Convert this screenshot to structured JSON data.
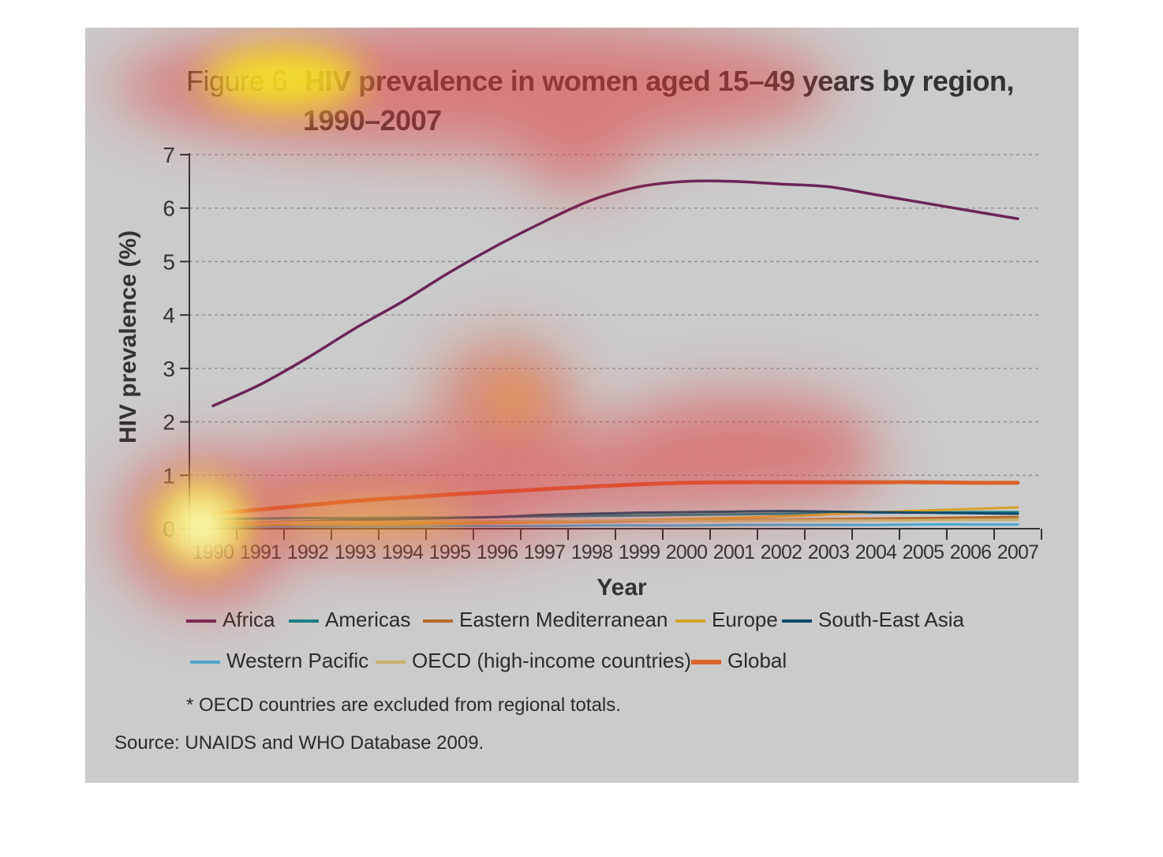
{
  "chart_data": {
    "type": "line",
    "title_prefix": "Figure 6",
    "title_line1": "HIV prevalence in women aged 15–49 years by region,",
    "title_line2": "1990–2007",
    "xlabel": "Year",
    "ylabel": "HIV prevalence (%)",
    "ylim": [
      0,
      7
    ],
    "yticks": [
      "0",
      "1",
      "2",
      "3",
      "4",
      "5",
      "6",
      "7"
    ],
    "x": [
      "1990",
      "1991",
      "1992",
      "1993",
      "1994",
      "1995",
      "1996",
      "1997",
      "1998",
      "1999",
      "2000",
      "2001",
      "2002",
      "2003",
      "2004",
      "2005",
      "2006",
      "2007"
    ],
    "grid": "horizontal dashed",
    "legend_position": "bottom",
    "series": [
      {
        "name": "Africa",
        "color": "#6b2557",
        "width": 3.5,
        "values": [
          2.3,
          2.7,
          3.2,
          3.75,
          4.25,
          4.8,
          5.3,
          5.75,
          6.15,
          6.4,
          6.5,
          6.5,
          6.45,
          6.4,
          6.25,
          6.1,
          5.95,
          5.8
        ]
      },
      {
        "name": "Americas",
        "color": "#1a7f86",
        "width": 3,
        "values": [
          0.18,
          0.19,
          0.2,
          0.2,
          0.21,
          0.21,
          0.22,
          0.23,
          0.24,
          0.25,
          0.26,
          0.27,
          0.28,
          0.29,
          0.3,
          0.3,
          0.31,
          0.31
        ]
      },
      {
        "name": "Eastern Mediterranean",
        "color": "#b86a2c",
        "width": 3,
        "values": [
          0.05,
          0.06,
          0.07,
          0.08,
          0.09,
          0.1,
          0.11,
          0.12,
          0.13,
          0.14,
          0.15,
          0.16,
          0.17,
          0.18,
          0.19,
          0.2,
          0.21,
          0.22
        ]
      },
      {
        "name": "Europe",
        "color": "#d4a22a",
        "width": 3,
        "values": [
          0.05,
          0.06,
          0.07,
          0.08,
          0.09,
          0.1,
          0.11,
          0.12,
          0.14,
          0.16,
          0.18,
          0.2,
          0.23,
          0.27,
          0.31,
          0.34,
          0.37,
          0.4
        ]
      },
      {
        "name": "South-East Asia",
        "color": "#0d4a6b",
        "width": 3,
        "values": [
          0.1,
          0.12,
          0.14,
          0.16,
          0.18,
          0.2,
          0.22,
          0.26,
          0.28,
          0.3,
          0.31,
          0.32,
          0.33,
          0.32,
          0.31,
          0.3,
          0.29,
          0.28
        ]
      },
      {
        "name": "Western Pacific",
        "color": "#4aa8cf",
        "width": 3,
        "values": [
          0.03,
          0.03,
          0.04,
          0.04,
          0.04,
          0.05,
          0.05,
          0.05,
          0.06,
          0.06,
          0.06,
          0.07,
          0.07,
          0.07,
          0.07,
          0.08,
          0.08,
          0.08
        ]
      },
      {
        "name": "OECD (high-income countries)",
        "color": "#c8b06a",
        "width": 3,
        "values": [
          0.12,
          0.12,
          0.13,
          0.13,
          0.13,
          0.14,
          0.14,
          0.14,
          0.15,
          0.15,
          0.15,
          0.15,
          0.16,
          0.16,
          0.16,
          0.16,
          0.17,
          0.17
        ]
      },
      {
        "name": "Global",
        "color": "#d9632b",
        "width": 5,
        "values": [
          0.28,
          0.36,
          0.44,
          0.52,
          0.58,
          0.64,
          0.69,
          0.74,
          0.79,
          0.83,
          0.86,
          0.87,
          0.87,
          0.87,
          0.87,
          0.87,
          0.86,
          0.86
        ]
      }
    ]
  },
  "legend_rows": [
    [
      "Africa",
      "Americas",
      "Eastern Mediterranean",
      "Europe",
      "South-East Asia"
    ],
    [
      "Western Pacific",
      "OECD (high-income countries)",
      "Global"
    ]
  ],
  "note": "* OECD countries are excluded from regional totals.",
  "source": "Source: UNAIDS and WHO Database 2009."
}
